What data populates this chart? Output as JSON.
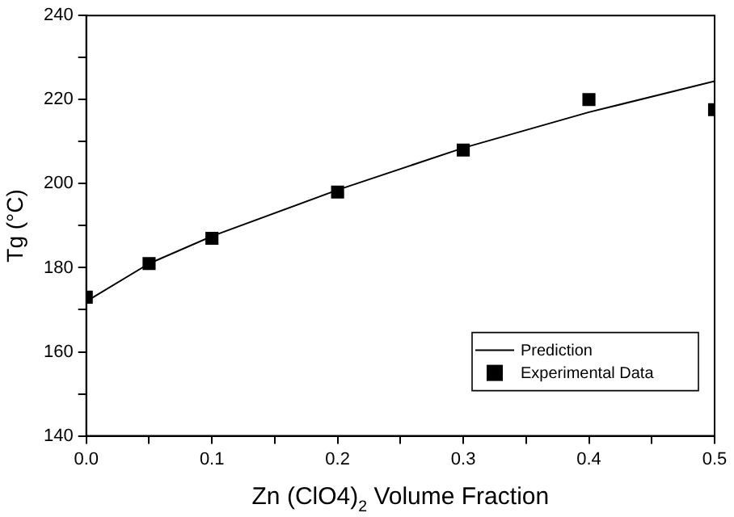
{
  "chart_data": {
    "type": "line",
    "xlabel": "Zn (ClO4)$_{2}$ Volume Fraction",
    "ylabel": "Tg (°C)",
    "xlim": [
      0,
      0.5
    ],
    "xticks": [
      {
        "value": 0,
        "label": "0.0"
      },
      {
        "value": 0.05,
        "label": null
      },
      0.1,
      {
        "value": 0.15,
        "label": null
      },
      0.2,
      {
        "value": 0.25,
        "label": null
      },
      0.3,
      {
        "value": 0.35,
        "label": null
      },
      0.4,
      {
        "value": 0.45,
        "label": null
      },
      0.5
    ],
    "ylim": [
      140,
      240
    ],
    "yticks": [
      140,
      {
        "value": 150,
        "label": null
      },
      160,
      {
        "value": 170,
        "label": null
      },
      180,
      {
        "value": 190,
        "label": null
      },
      200,
      {
        "value": 210,
        "label": null
      },
      220,
      {
        "value": 230,
        "label": null
      },
      240
    ],
    "grid": false,
    "legend": "bottom right",
    "series": [
      {
        "name": "Prediction",
        "color": "#000000",
        "marker": "none",
        "line_style": "solid",
        "x": [
          0,
          0.05,
          0.1,
          0.2,
          0.3,
          0.4,
          0.5
        ],
        "values": [
          172,
          181,
          187.5,
          198.5,
          208.5,
          217,
          224.4
        ]
      },
      {
        "name": "Experimental Data",
        "type": "scatter",
        "color": "#000000",
        "marker": "square",
        "x": [
          0,
          0.05,
          0.1,
          0.2,
          0.3,
          0.4,
          0.5
        ],
        "values": [
          173,
          181,
          187,
          198,
          208,
          220,
          217.6
        ]
      }
    ]
  }
}
